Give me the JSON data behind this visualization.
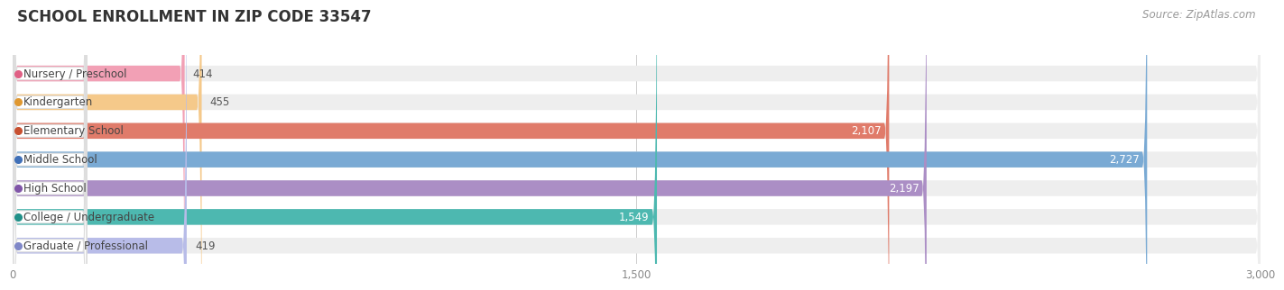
{
  "title": "SCHOOL ENROLLMENT IN ZIP CODE 33547",
  "source": "Source: ZipAtlas.com",
  "categories": [
    "Nursery / Preschool",
    "Kindergarten",
    "Elementary School",
    "Middle School",
    "High School",
    "College / Undergraduate",
    "Graduate / Professional"
  ],
  "values": [
    414,
    455,
    2107,
    2727,
    2197,
    1549,
    419
  ],
  "bar_colors": [
    "#f2a0b5",
    "#f5c98a",
    "#e07b6a",
    "#7aaad4",
    "#ab8ec5",
    "#4db8b0",
    "#b8bce8"
  ],
  "label_dot_colors": [
    "#e06085",
    "#e09830",
    "#c85030",
    "#4070b8",
    "#8055a8",
    "#209088",
    "#8088c8"
  ],
  "xlim": [
    0,
    3000
  ],
  "xticks": [
    0,
    1500,
    3000
  ],
  "xtick_labels": [
    "0",
    "1,500",
    "3,000"
  ],
  "bar_height": 0.55,
  "background_color": "#ffffff",
  "bar_bg_color": "#eeeeee",
  "title_fontsize": 12,
  "label_fontsize": 8.5,
  "value_fontsize": 8.5,
  "source_fontsize": 8.5,
  "value_threshold": 600
}
